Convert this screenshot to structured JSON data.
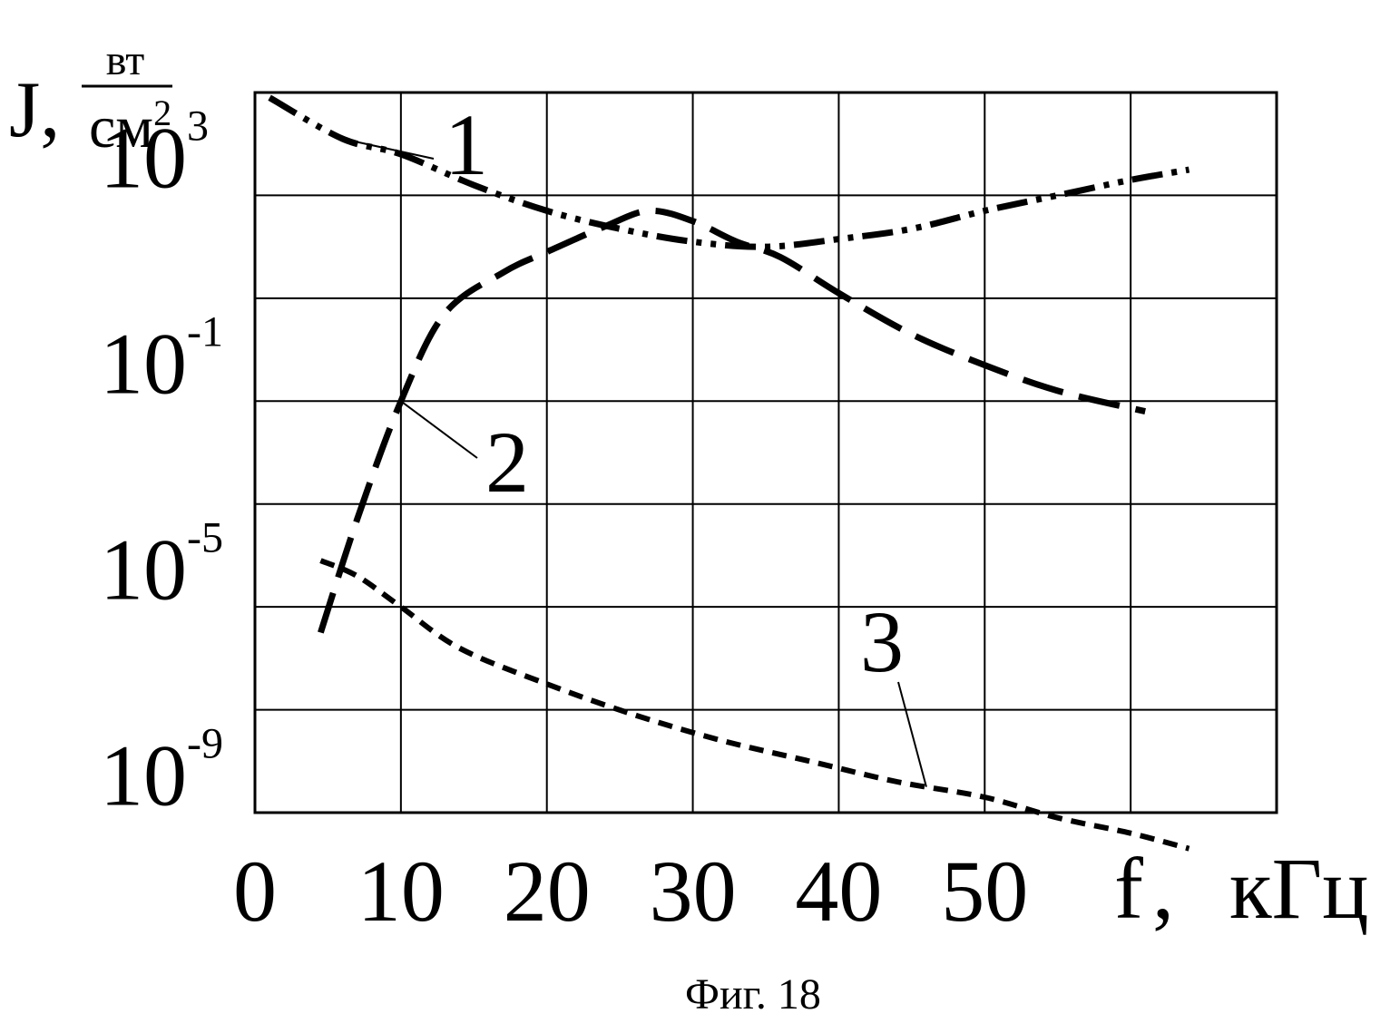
{
  "chart_data": {
    "type": "line",
    "figure_caption": "Фиг. 18",
    "ylabel": {
      "symbol": "J,",
      "unit_numerator": "вт",
      "unit_denominator_base": "см",
      "unit_denominator_exp": "2"
    },
    "xlabel": {
      "symbol": "f",
      "separator": ",",
      "unit": "кГц"
    },
    "x_ticks": [
      "0",
      "10",
      "20",
      "30",
      "40",
      "50"
    ],
    "y_ticks": [
      {
        "base": "10",
        "exp": "3",
        "log_value": 3
      },
      {
        "base": "10",
        "exp": "-1",
        "log_value": -1
      },
      {
        "base": "10",
        "exp": "-5",
        "log_value": -5
      },
      {
        "base": "10",
        "exp": "-9",
        "log_value": -9
      }
    ],
    "xlim": [
      0,
      70
    ],
    "ylim_log10": [
      -10,
      4
    ],
    "y_scale": "log",
    "grid": true,
    "series": [
      {
        "label": "1",
        "style": "dash-dot-dot",
        "points": [
          [
            1,
            3.9
          ],
          [
            6,
            3.1
          ],
          [
            10,
            2.8
          ],
          [
            15,
            2.2
          ],
          [
            20,
            1.7
          ],
          [
            25,
            1.35
          ],
          [
            30,
            1.1
          ],
          [
            35,
            1.0
          ],
          [
            40,
            1.15
          ],
          [
            45,
            1.35
          ],
          [
            50,
            1.7
          ],
          [
            55,
            2.0
          ],
          [
            60,
            2.3
          ],
          [
            64,
            2.5
          ]
        ]
      },
      {
        "label": "2",
        "style": "dash",
        "points": [
          [
            4.5,
            -6.5
          ],
          [
            7,
            -4.3
          ],
          [
            10,
            -2.0
          ],
          [
            13,
            -0.3
          ],
          [
            17,
            0.5
          ],
          [
            20,
            0.9
          ],
          [
            24,
            1.4
          ],
          [
            27,
            1.7
          ],
          [
            30,
            1.5
          ],
          [
            33,
            1.1
          ],
          [
            36,
            0.8
          ],
          [
            40,
            0.1
          ],
          [
            45,
            -0.7
          ],
          [
            50,
            -1.3
          ],
          [
            55,
            -1.8
          ],
          [
            61,
            -2.2
          ]
        ]
      },
      {
        "label": "3",
        "style": "short-dash",
        "points": [
          [
            4.5,
            -5.1
          ],
          [
            7,
            -5.4
          ],
          [
            10,
            -6.0
          ],
          [
            14,
            -6.8
          ],
          [
            20,
            -7.5
          ],
          [
            26,
            -8.1
          ],
          [
            32,
            -8.6
          ],
          [
            38,
            -9.0
          ],
          [
            44,
            -9.4
          ],
          [
            50,
            -9.7
          ],
          [
            55,
            -10.1
          ],
          [
            60,
            -10.4
          ],
          [
            64,
            -10.7
          ]
        ]
      }
    ],
    "annotations": [
      {
        "text": "1",
        "series": "1",
        "point": [
          6,
          3.1
        ]
      },
      {
        "text": "2",
        "series": "2",
        "point": [
          10,
          -2.0
        ]
      },
      {
        "text": "3",
        "series": "3",
        "point": [
          46,
          -9.5
        ]
      }
    ]
  }
}
